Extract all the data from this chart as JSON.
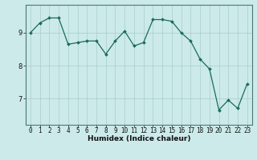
{
  "xlabel": "Humidex (Indice chaleur)",
  "background_color": "#cceaea",
  "grid_color": "#aacccc",
  "line_color": "#1a6b5a",
  "marker_color": "#1a6b5a",
  "x": [
    0,
    1,
    2,
    3,
    4,
    5,
    6,
    7,
    8,
    9,
    10,
    11,
    12,
    13,
    14,
    15,
    16,
    17,
    18,
    19,
    20,
    21,
    22,
    23
  ],
  "y": [
    9.0,
    9.3,
    9.45,
    9.45,
    8.65,
    8.7,
    8.75,
    8.75,
    8.35,
    8.75,
    9.05,
    8.6,
    8.7,
    9.4,
    9.4,
    9.35,
    9.0,
    8.75,
    8.2,
    7.9,
    6.65,
    6.95,
    6.7,
    7.45
  ],
  "yticks": [
    7,
    8,
    9
  ],
  "ylim": [
    6.2,
    9.85
  ],
  "xlim": [
    -0.5,
    23.5
  ],
  "xticks": [
    0,
    1,
    2,
    3,
    4,
    5,
    6,
    7,
    8,
    9,
    10,
    11,
    12,
    13,
    14,
    15,
    16,
    17,
    18,
    19,
    20,
    21,
    22,
    23
  ],
  "tick_fontsize": 5.5,
  "xlabel_fontsize": 6.5,
  "linewidth": 0.9,
  "markersize": 2.0
}
